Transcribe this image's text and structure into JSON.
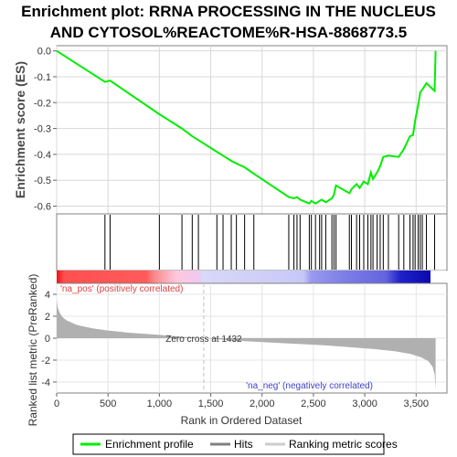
{
  "title_line1": "Enrichment plot: RRNA PROCESSING IN THE NUCLEUS",
  "title_line2": "AND CYTOSOL%REACTOME%R-HSA-8868773.5",
  "colors": {
    "es_line": "#00ee00",
    "hit": "#000000",
    "metric_fill": "#b0b0b0",
    "pos_text": "#e04040",
    "neg_text": "#4040cc",
    "zero_cross": "#c0c0c0"
  },
  "chart_data": [
    {
      "type": "line",
      "name": "enrichment-profile",
      "ylabel": "Enrichment score (ES)",
      "xlim": [
        0,
        3800
      ],
      "ylim": [
        -0.63,
        0.02
      ],
      "yticks": [
        0.0,
        -0.1,
        -0.2,
        -0.3,
        -0.4,
        -0.5,
        -0.6
      ],
      "ytick_labels": [
        "0.0",
        "-0.1",
        "-0.2",
        "-0.3",
        "-0.4",
        "-0.5",
        "-0.6"
      ],
      "grid": true,
      "x": [
        0,
        470,
        520,
        1000,
        1220,
        1320,
        1380,
        1560,
        1620,
        1700,
        1750,
        1830,
        1920,
        2260,
        2310,
        2340,
        2370,
        2460,
        2480,
        2520,
        2560,
        2580,
        2620,
        2680,
        2700,
        2720,
        2850,
        2870,
        2920,
        2950,
        2990,
        3030,
        3060,
        3080,
        3120,
        3150,
        3180,
        3230,
        3330,
        3380,
        3440,
        3470,
        3490,
        3520,
        3540,
        3560,
        3600,
        3680,
        3690
      ],
      "y": [
        0.0,
        -0.12,
        -0.115,
        -0.245,
        -0.3,
        -0.33,
        -0.345,
        -0.39,
        -0.405,
        -0.425,
        -0.435,
        -0.45,
        -0.475,
        -0.565,
        -0.57,
        -0.565,
        -0.575,
        -0.59,
        -0.58,
        -0.59,
        -0.58,
        -0.575,
        -0.585,
        -0.57,
        -0.555,
        -0.52,
        -0.55,
        -0.535,
        -0.515,
        -0.53,
        -0.505,
        -0.515,
        -0.47,
        -0.495,
        -0.47,
        -0.445,
        -0.41,
        -0.405,
        -0.41,
        -0.38,
        -0.33,
        -0.325,
        -0.27,
        -0.21,
        -0.16,
        -0.15,
        -0.125,
        -0.155,
        0.0
      ]
    },
    {
      "type": "bar",
      "name": "hits",
      "hit_positions": [
        470,
        520,
        1000,
        1220,
        1320,
        1380,
        1560,
        1620,
        1700,
        1750,
        1830,
        1920,
        2260,
        2310,
        2340,
        2370,
        2460,
        2480,
        2520,
        2560,
        2580,
        2620,
        2680,
        2700,
        2720,
        2850,
        2870,
        2920,
        2950,
        2990,
        3030,
        3060,
        3080,
        3120,
        3150,
        3180,
        3230,
        3330,
        3380,
        3440,
        3470,
        3490,
        3520,
        3540,
        3560,
        3600,
        3680
      ]
    },
    {
      "type": "area",
      "name": "ranked-list-metric",
      "xlabel": "Rank in Ordered Dataset",
      "ylabel": "Ranked list metric (PreRanked)",
      "xlim": [
        0,
        3800
      ],
      "ylim": [
        -5,
        5
      ],
      "xticks": [
        0,
        500,
        1000,
        1500,
        2000,
        2500,
        3000,
        3500
      ],
      "xtick_labels": [
        "0",
        "500",
        "1,000",
        "1,500",
        "2,000",
        "2,500",
        "3,000",
        "3,500"
      ],
      "yticks": [
        4,
        2,
        0,
        -2,
        -4
      ],
      "ytick_labels": [
        "4",
        "2",
        "0",
        "-2",
        "-4"
      ],
      "x": [
        0,
        10,
        30,
        60,
        100,
        200,
        350,
        500,
        700,
        1000,
        1200,
        1432,
        1700,
        2000,
        2300,
        2600,
        2900,
        3100,
        3300,
        3450,
        3550,
        3620,
        3660,
        3680,
        3690
      ],
      "y": [
        3.5,
        2.8,
        2.3,
        1.9,
        1.6,
        1.2,
        0.9,
        0.7,
        0.5,
        0.3,
        0.15,
        0.0,
        -0.2,
        -0.35,
        -0.5,
        -0.65,
        -0.85,
        -1.0,
        -1.2,
        -1.45,
        -1.75,
        -2.1,
        -2.6,
        -3.3,
        -4.7
      ],
      "zero_cross_rank": 1432,
      "zero_cross_label": "Zero cross at 1432",
      "pos_label": "'na_pos' (positively correlated)",
      "neg_label": "'na_neg' (negatively correlated)"
    }
  ],
  "legend": {
    "items": [
      {
        "label": "Enrichment profile",
        "color": "#00ee00"
      },
      {
        "label": "Hits",
        "color": "#808080"
      },
      {
        "label": "Ranking metric scores",
        "color": "#cccccc"
      }
    ]
  }
}
